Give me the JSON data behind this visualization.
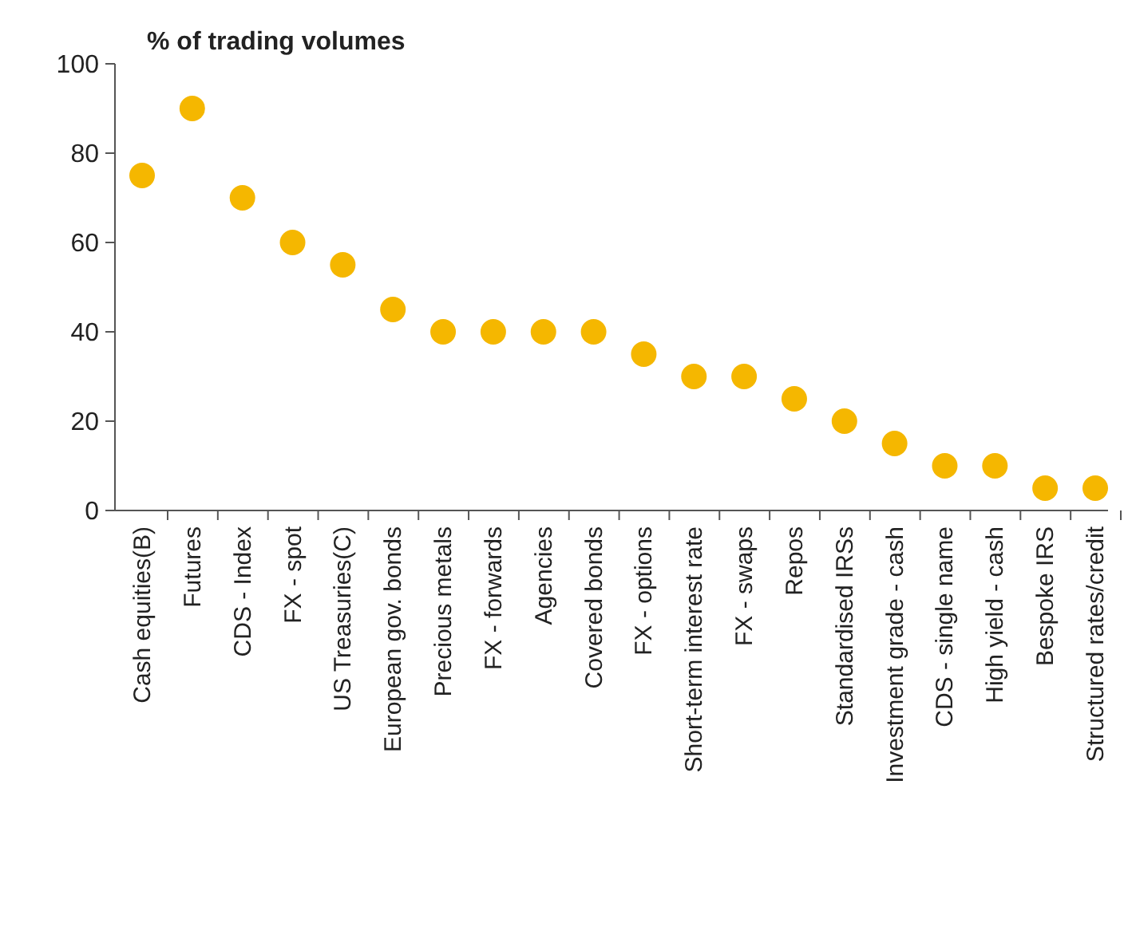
{
  "chart_data": {
    "type": "scatter",
    "title": "% of trading volumes",
    "categories": [
      "Cash equities(B)",
      "Futures",
      "CDS - Index",
      "FX - spot",
      "US Treasuries(C)",
      "European gov. bonds",
      "Precious metals",
      "FX - forwards",
      "Agencies",
      "Covered bonds",
      "FX - options",
      "Short-term interest rate",
      "FX - swaps",
      "Repos",
      "Standardised IRSs",
      "Investment grade - cash",
      "CDS - single name",
      "High yield - cash",
      "Bespoke IRS",
      "Structured rates/credit"
    ],
    "series": [
      {
        "color": "#f5b700",
        "values": [
          75,
          90,
          70,
          60,
          55,
          45,
          40,
          40,
          40,
          40,
          35,
          30,
          30,
          25,
          20,
          15,
          10,
          10,
          5,
          5
        ]
      }
    ],
    "ylim": [
      0,
      100
    ],
    "yticks": [
      0,
      20,
      40,
      60,
      80,
      100
    ],
    "grid": false,
    "marker": "circle"
  }
}
